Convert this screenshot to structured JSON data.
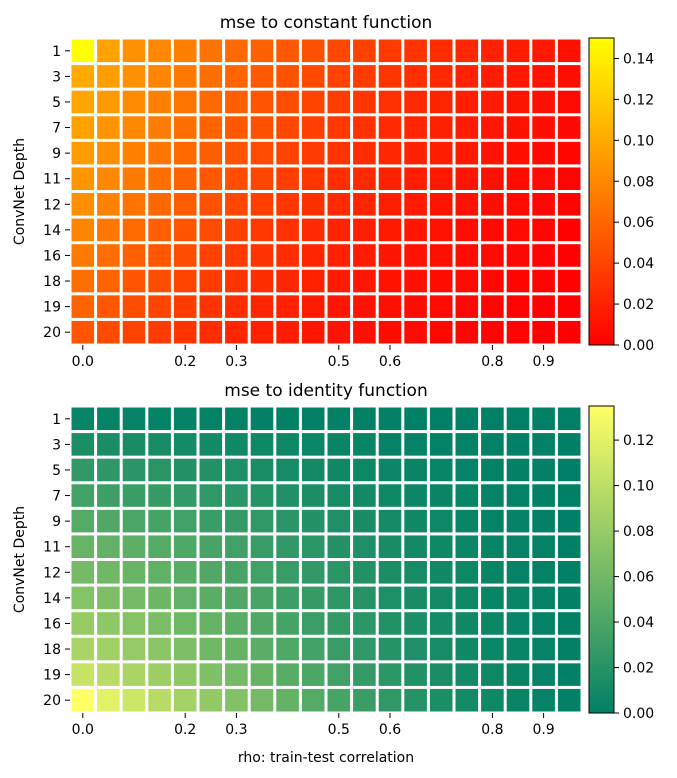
{
  "chart_data": [
    {
      "type": "heatmap",
      "title": "mse to constant function",
      "xlabel": "",
      "ylabel": "ConvNet Depth",
      "x": [
        0.0,
        0.05,
        0.1,
        0.15,
        0.2,
        0.25,
        0.3,
        0.35,
        0.4,
        0.45,
        0.5,
        0.55,
        0.6,
        0.65,
        0.7,
        0.75,
        0.8,
        0.85,
        0.9,
        0.95
      ],
      "x_tick_labels": [
        "0.0",
        "0.2",
        "0.3",
        "0.5",
        "0.6",
        "0.8",
        "0.9"
      ],
      "x_tick_values": [
        0.0,
        0.2,
        0.3,
        0.5,
        0.6,
        0.8,
        0.9
      ],
      "y": [
        1,
        3,
        5,
        7,
        9,
        11,
        12,
        14,
        16,
        18,
        19,
        20
      ],
      "y_tick_labels": [
        "1",
        "3",
        "5",
        "7",
        "9",
        "11",
        "12",
        "14",
        "16",
        "18",
        "19",
        "20"
      ],
      "colormap": "autumn",
      "colormap_colors": [
        "#ff0000",
        "#ffff00"
      ],
      "vmin": 0.0,
      "vmax": 0.15,
      "colorbar_ticks": [
        "0.00",
        "0.02",
        "0.04",
        "0.06",
        "0.08",
        "0.10",
        "0.12",
        "0.14"
      ],
      "colorbar_tick_values": [
        0.0,
        0.02,
        0.04,
        0.06,
        0.08,
        0.1,
        0.12,
        0.14
      ],
      "values": [
        [
          0.15,
          0.095,
          0.085,
          0.08,
          0.074,
          0.068,
          0.062,
          0.057,
          0.052,
          0.047,
          0.042,
          0.038,
          0.034,
          0.03,
          0.026,
          0.023,
          0.02,
          0.017,
          0.014,
          0.01
        ],
        [
          0.1,
          0.093,
          0.085,
          0.078,
          0.071,
          0.065,
          0.059,
          0.053,
          0.048,
          0.043,
          0.039,
          0.035,
          0.031,
          0.027,
          0.024,
          0.02,
          0.017,
          0.014,
          0.011,
          0.008
        ],
        [
          0.098,
          0.09,
          0.082,
          0.075,
          0.068,
          0.062,
          0.056,
          0.05,
          0.045,
          0.04,
          0.036,
          0.032,
          0.028,
          0.024,
          0.021,
          0.018,
          0.015,
          0.012,
          0.009,
          0.006
        ],
        [
          0.095,
          0.087,
          0.079,
          0.072,
          0.065,
          0.058,
          0.052,
          0.047,
          0.042,
          0.037,
          0.033,
          0.029,
          0.025,
          0.022,
          0.019,
          0.016,
          0.013,
          0.01,
          0.008,
          0.005
        ],
        [
          0.092,
          0.084,
          0.076,
          0.069,
          0.062,
          0.055,
          0.049,
          0.044,
          0.039,
          0.034,
          0.03,
          0.026,
          0.023,
          0.02,
          0.017,
          0.014,
          0.011,
          0.009,
          0.006,
          0.004
        ],
        [
          0.088,
          0.08,
          0.072,
          0.065,
          0.058,
          0.052,
          0.046,
          0.041,
          0.036,
          0.031,
          0.027,
          0.024,
          0.02,
          0.017,
          0.014,
          0.012,
          0.009,
          0.007,
          0.005,
          0.003
        ],
        [
          0.084,
          0.076,
          0.068,
          0.061,
          0.054,
          0.048,
          0.042,
          0.037,
          0.032,
          0.028,
          0.024,
          0.021,
          0.018,
          0.015,
          0.012,
          0.01,
          0.008,
          0.006,
          0.004,
          0.002
        ],
        [
          0.078,
          0.07,
          0.063,
          0.056,
          0.05,
          0.044,
          0.038,
          0.033,
          0.029,
          0.025,
          0.021,
          0.018,
          0.015,
          0.013,
          0.01,
          0.008,
          0.006,
          0.005,
          0.003,
          0.002
        ],
        [
          0.072,
          0.064,
          0.057,
          0.051,
          0.045,
          0.039,
          0.034,
          0.03,
          0.026,
          0.022,
          0.019,
          0.016,
          0.013,
          0.011,
          0.009,
          0.007,
          0.005,
          0.004,
          0.002,
          0.001
        ],
        [
          0.065,
          0.058,
          0.051,
          0.045,
          0.04,
          0.035,
          0.03,
          0.026,
          0.022,
          0.019,
          0.016,
          0.013,
          0.011,
          0.009,
          0.007,
          0.006,
          0.004,
          0.003,
          0.002,
          0.001
        ],
        [
          0.058,
          0.051,
          0.045,
          0.04,
          0.035,
          0.03,
          0.026,
          0.022,
          0.019,
          0.016,
          0.013,
          0.011,
          0.009,
          0.007,
          0.006,
          0.004,
          0.003,
          0.002,
          0.001,
          0.001
        ],
        [
          0.05,
          0.044,
          0.039,
          0.034,
          0.03,
          0.026,
          0.022,
          0.019,
          0.016,
          0.013,
          0.011,
          0.009,
          0.007,
          0.006,
          0.004,
          0.003,
          0.002,
          0.002,
          0.001,
          0.0
        ]
      ]
    },
    {
      "type": "heatmap",
      "title": "mse to identity function",
      "xlabel": "rho: train-test correlation",
      "ylabel": "ConvNet Depth",
      "x": [
        0.0,
        0.05,
        0.1,
        0.15,
        0.2,
        0.25,
        0.3,
        0.35,
        0.4,
        0.45,
        0.5,
        0.55,
        0.6,
        0.65,
        0.7,
        0.75,
        0.8,
        0.85,
        0.9,
        0.95
      ],
      "x_tick_labels": [
        "0.0",
        "0.2",
        "0.3",
        "0.5",
        "0.6",
        "0.8",
        "0.9"
      ],
      "x_tick_values": [
        0.0,
        0.2,
        0.3,
        0.5,
        0.6,
        0.8,
        0.9
      ],
      "y": [
        1,
        3,
        5,
        7,
        9,
        11,
        12,
        14,
        16,
        18,
        19,
        20
      ],
      "y_tick_labels": [
        "1",
        "3",
        "5",
        "7",
        "9",
        "11",
        "12",
        "14",
        "16",
        "18",
        "19",
        "20"
      ],
      "colormap": "summer",
      "colormap_colors": [
        "#008066",
        "#ffff66"
      ],
      "vmin": 0.0,
      "vmax": 0.135,
      "colorbar_ticks": [
        "0.00",
        "0.02",
        "0.04",
        "0.06",
        "0.08",
        "0.10",
        "0.12"
      ],
      "colorbar_tick_values": [
        0.0,
        0.02,
        0.04,
        0.06,
        0.08,
        0.1,
        0.12
      ],
      "values": [
        [
          0.004,
          0.003,
          0.003,
          0.002,
          0.002,
          0.002,
          0.002,
          0.001,
          0.001,
          0.001,
          0.001,
          0.001,
          0.001,
          0.0,
          0.0,
          0.0,
          0.0,
          0.0,
          0.0,
          0.0
        ],
        [
          0.015,
          0.014,
          0.013,
          0.012,
          0.011,
          0.01,
          0.009,
          0.008,
          0.007,
          0.006,
          0.005,
          0.004,
          0.003,
          0.003,
          0.002,
          0.002,
          0.001,
          0.001,
          0.001,
          0.0
        ],
        [
          0.025,
          0.024,
          0.022,
          0.021,
          0.019,
          0.018,
          0.016,
          0.014,
          0.012,
          0.01,
          0.009,
          0.007,
          0.006,
          0.005,
          0.004,
          0.003,
          0.002,
          0.001,
          0.001,
          0.0
        ],
        [
          0.035,
          0.033,
          0.031,
          0.029,
          0.027,
          0.025,
          0.022,
          0.02,
          0.017,
          0.015,
          0.012,
          0.01,
          0.008,
          0.006,
          0.005,
          0.004,
          0.003,
          0.002,
          0.001,
          0.0
        ],
        [
          0.045,
          0.043,
          0.04,
          0.037,
          0.034,
          0.031,
          0.028,
          0.025,
          0.022,
          0.019,
          0.016,
          0.013,
          0.011,
          0.009,
          0.007,
          0.005,
          0.003,
          0.002,
          0.001,
          0.0
        ],
        [
          0.055,
          0.052,
          0.049,
          0.045,
          0.042,
          0.038,
          0.034,
          0.03,
          0.026,
          0.023,
          0.019,
          0.016,
          0.013,
          0.01,
          0.008,
          0.006,
          0.004,
          0.003,
          0.002,
          0.001
        ],
        [
          0.062,
          0.059,
          0.055,
          0.051,
          0.047,
          0.043,
          0.038,
          0.034,
          0.03,
          0.026,
          0.022,
          0.018,
          0.015,
          0.012,
          0.009,
          0.007,
          0.005,
          0.003,
          0.002,
          0.001
        ],
        [
          0.07,
          0.066,
          0.062,
          0.057,
          0.052,
          0.048,
          0.043,
          0.038,
          0.033,
          0.029,
          0.024,
          0.02,
          0.016,
          0.013,
          0.01,
          0.008,
          0.005,
          0.004,
          0.002,
          0.001
        ],
        [
          0.08,
          0.075,
          0.07,
          0.065,
          0.059,
          0.054,
          0.048,
          0.043,
          0.037,
          0.032,
          0.027,
          0.023,
          0.018,
          0.015,
          0.011,
          0.009,
          0.006,
          0.004,
          0.002,
          0.001
        ],
        [
          0.09,
          0.085,
          0.079,
          0.073,
          0.066,
          0.06,
          0.054,
          0.048,
          0.042,
          0.036,
          0.03,
          0.025,
          0.02,
          0.016,
          0.012,
          0.009,
          0.006,
          0.004,
          0.003,
          0.001
        ],
        [
          0.105,
          0.098,
          0.09,
          0.083,
          0.075,
          0.068,
          0.061,
          0.054,
          0.047,
          0.04,
          0.034,
          0.028,
          0.023,
          0.018,
          0.014,
          0.01,
          0.007,
          0.005,
          0.003,
          0.001
        ],
        [
          0.135,
          0.12,
          0.108,
          0.097,
          0.087,
          0.078,
          0.069,
          0.061,
          0.053,
          0.045,
          0.038,
          0.031,
          0.025,
          0.02,
          0.015,
          0.011,
          0.008,
          0.005,
          0.003,
          0.001
        ]
      ]
    }
  ]
}
